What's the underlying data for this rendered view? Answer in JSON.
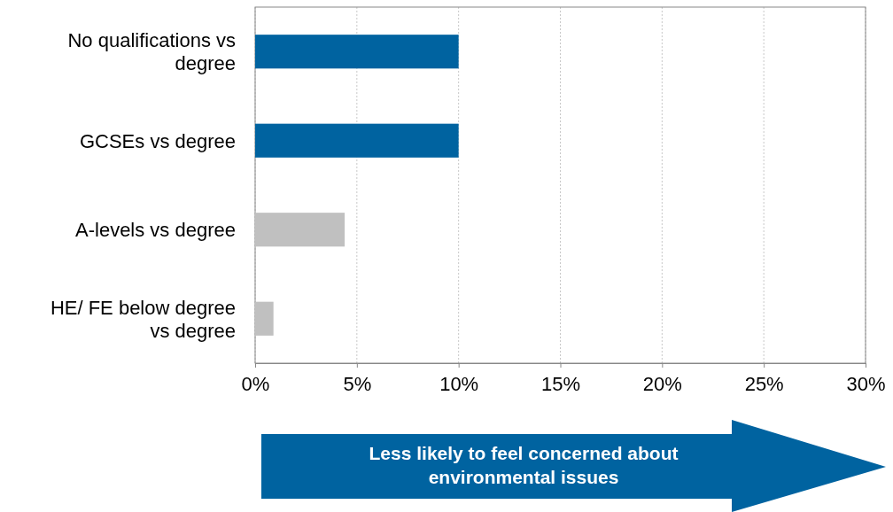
{
  "chart_data": {
    "type": "bar",
    "orientation": "horizontal",
    "categories": [
      "No qualifications vs degree",
      "GCSEs vs degree",
      "A-levels vs degree",
      "HE/ FE below degree vs degree"
    ],
    "values": [
      10,
      10,
      4.4,
      0.9
    ],
    "colors": [
      "#0063a0",
      "#0063a0",
      "#c0c0c0",
      "#c0c0c0"
    ],
    "xlim": [
      0,
      30
    ],
    "xticks": [
      {
        "value": 0,
        "label": "0%"
      },
      {
        "value": 5,
        "label": "5%"
      },
      {
        "value": 10,
        "label": "10%"
      },
      {
        "value": 15,
        "label": "15%"
      },
      {
        "value": 20,
        "label": "20%"
      },
      {
        "value": 25,
        "label": "25%"
      },
      {
        "value": 30,
        "label": "30%"
      }
    ],
    "grid": "x",
    "annotations": [
      "Less likely to feel concerned about environmental issues"
    ]
  }
}
